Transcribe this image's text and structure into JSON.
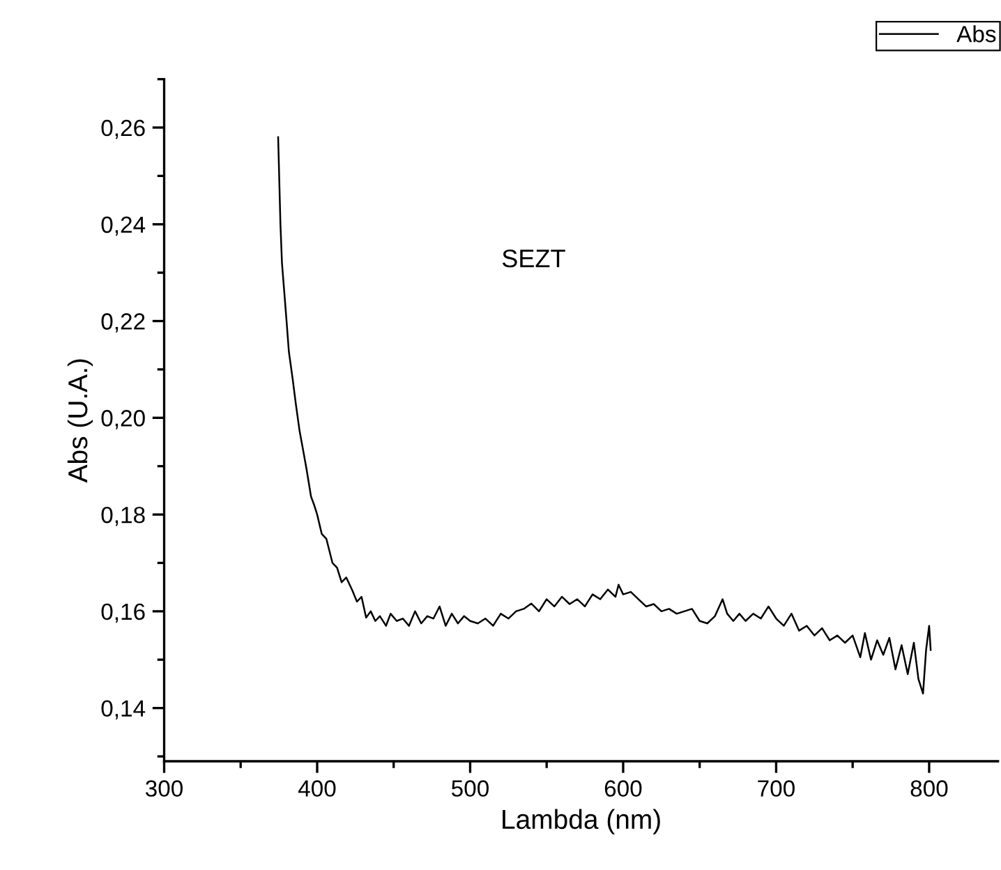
{
  "chart_data": {
    "type": "line",
    "xlabel": "Lambda (nm)",
    "ylabel": "Abs (U.A.)",
    "annotations": [
      "SEZT"
    ],
    "xlim": [
      300,
      845
    ],
    "xticks": [
      300,
      400,
      500,
      600,
      700,
      800
    ],
    "ylim": [
      0.129,
      0.27
    ],
    "yticks": [
      {
        "value": 0.14,
        "label": "0,14"
      },
      {
        "value": 0.16,
        "label": "0,16"
      },
      {
        "value": 0.18,
        "label": "0,18"
      },
      {
        "value": 0.2,
        "label": "0,20"
      },
      {
        "value": 0.22,
        "label": "0,22"
      },
      {
        "value": 0.24,
        "label": "0,24"
      },
      {
        "value": 0.26,
        "label": "0,26"
      }
    ],
    "grid": false,
    "legend": "top right",
    "marker": "none",
    "line_style": "solid",
    "series": [
      {
        "name": "Abs",
        "color": "#000000",
        "x": [
          374.5,
          376,
          377,
          378.5,
          380,
          381.5,
          384,
          386,
          388.5,
          391,
          393,
          396,
          398,
          400,
          403,
          406,
          410,
          413,
          416,
          419,
          423,
          426,
          429,
          432,
          435,
          438,
          441,
          445,
          448,
          452,
          456,
          460,
          464,
          468,
          472,
          476,
          480,
          484,
          488,
          492,
          496,
          500,
          505,
          510,
          515,
          520,
          525,
          530,
          535,
          540,
          545,
          550,
          555,
          560,
          565,
          570,
          575,
          580,
          585,
          590,
          595,
          597,
          600,
          605,
          610,
          615,
          620,
          625,
          630,
          635,
          640,
          645,
          650,
          655,
          660,
          665,
          668,
          672,
          676,
          680,
          685,
          690,
          695,
          700,
          705,
          710,
          715,
          720,
          725,
          730,
          735,
          740,
          745,
          750,
          755,
          758,
          762,
          766,
          770,
          774,
          778,
          782,
          786,
          790,
          793,
          796,
          798,
          800,
          801
        ],
        "values": [
          0.258,
          0.24,
          0.232,
          0.226,
          0.22,
          0.2137,
          0.208,
          0.203,
          0.1973,
          0.193,
          0.1895,
          0.1837,
          0.182,
          0.18,
          0.176,
          0.175,
          0.17,
          0.169,
          0.166,
          0.167,
          0.1643,
          0.162,
          0.163,
          0.1587,
          0.16,
          0.158,
          0.159,
          0.157,
          0.1595,
          0.158,
          0.1585,
          0.157,
          0.16,
          0.1575,
          0.159,
          0.1585,
          0.161,
          0.157,
          0.1595,
          0.1575,
          0.159,
          0.158,
          0.1575,
          0.1585,
          0.157,
          0.1595,
          0.1585,
          0.16,
          0.1605,
          0.1616,
          0.16,
          0.1625,
          0.161,
          0.163,
          0.1615,
          0.1625,
          0.161,
          0.1635,
          0.1625,
          0.1645,
          0.163,
          0.1655,
          0.1635,
          0.164,
          0.1625,
          0.161,
          0.1615,
          0.16,
          0.1605,
          0.1595,
          0.16,
          0.1605,
          0.158,
          0.1575,
          0.159,
          0.1625,
          0.1595,
          0.158,
          0.1595,
          0.158,
          0.1595,
          0.1585,
          0.161,
          0.1585,
          0.157,
          0.1595,
          0.156,
          0.157,
          0.155,
          0.1565,
          0.154,
          0.155,
          0.1535,
          0.155,
          0.1505,
          0.1555,
          0.15,
          0.154,
          0.151,
          0.1545,
          0.148,
          0.153,
          0.147,
          0.1535,
          0.146,
          0.143,
          0.152,
          0.157,
          0.152
        ]
      }
    ]
  }
}
